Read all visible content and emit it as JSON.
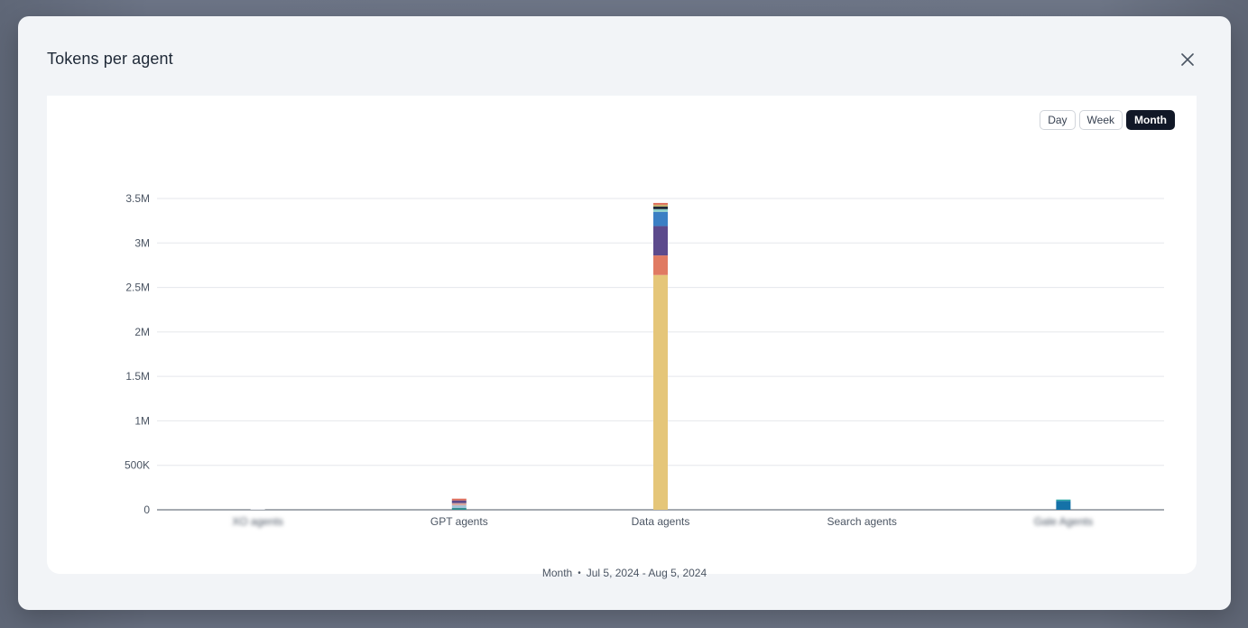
{
  "modal": {
    "title": "Tokens per agent",
    "close_icon": "close-icon"
  },
  "period_toggle": {
    "options": [
      "Day",
      "Week",
      "Month"
    ],
    "selected": "Month"
  },
  "footer": {
    "period": "Month",
    "range": "Jul 5, 2024 - Aug 5, 2024"
  },
  "chart_data": {
    "type": "bar",
    "stacked": true,
    "categories": [
      "XO agents",
      "GPT agents",
      "Data agents",
      "Search agents",
      "Gale Agents"
    ],
    "blurred_categories": [
      0,
      4
    ],
    "y_ticks": [
      "0",
      "500K",
      "1M",
      "1.5M",
      "2M",
      "2.5M",
      "3M",
      "3.5M"
    ],
    "y_tick_values": [
      0,
      500000,
      1000000,
      1500000,
      2000000,
      2500000,
      3000000,
      3500000
    ],
    "ylim": [
      0,
      3500000
    ],
    "grid": true,
    "segments": [
      {
        "category": "XO agents",
        "value": 10000,
        "color": "#e5e7eb"
      },
      {
        "category": "GPT agents",
        "value": 20000,
        "color": "#2e8b8b"
      },
      {
        "category": "GPT agents",
        "value": 30000,
        "color": "#a3c4d9"
      },
      {
        "category": "GPT agents",
        "value": 25000,
        "color": "#d9a7a0"
      },
      {
        "category": "GPT agents",
        "value": 30000,
        "color": "#5b4a8a"
      },
      {
        "category": "GPT agents",
        "value": 20000,
        "color": "#e06d5a"
      },
      {
        "category": "Data agents",
        "value": 2640000,
        "color": "#e5c679"
      },
      {
        "category": "Data agents",
        "value": 220000,
        "color": "#e07a62"
      },
      {
        "category": "Data agents",
        "value": 330000,
        "color": "#5c4a8c"
      },
      {
        "category": "Data agents",
        "value": 160000,
        "color": "#3b7fc4"
      },
      {
        "category": "Data agents",
        "value": 30000,
        "color": "#8fd0c8"
      },
      {
        "category": "Data agents",
        "value": 30000,
        "color": "#1f2937"
      },
      {
        "category": "Data agents",
        "value": 20000,
        "color": "#c8b06a"
      },
      {
        "category": "Data agents",
        "value": 20000,
        "color": "#e06d5a"
      },
      {
        "category": "Gale Agents",
        "value": 100000,
        "color": "#1572a8"
      },
      {
        "category": "Gale Agents",
        "value": 15000,
        "color": "#2aa6a6"
      }
    ],
    "title": "",
    "xlabel": "",
    "ylabel": ""
  }
}
